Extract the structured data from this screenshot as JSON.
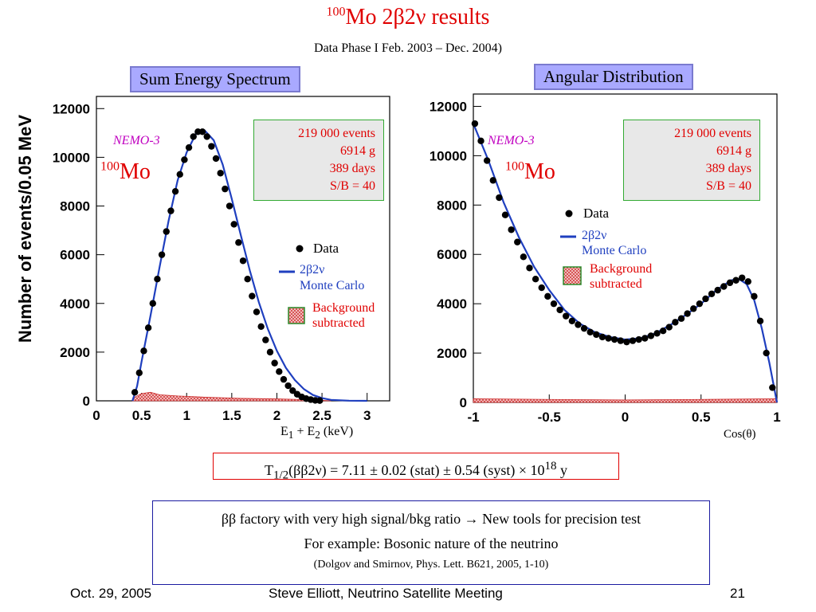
{
  "slide": {
    "title_mass": "100",
    "title_main": "Mo 2β2ν results",
    "subtitle": "Data Phase I  Feb. 2003 –  Dec. 2004)",
    "left_panel_title": "Sum Energy Spectrum",
    "right_panel_title": "Angular Distribution",
    "result_formula": "T1/2(ββ2ν) = 7.11 ± 0.02 (stat) ± 0.54 (syst) × 10^18 y",
    "note_line1": "ββ factory with very high signal/bkg ratio  →  New tools for precision test",
    "note_line2": "For example: Bosonic nature of the neutrino",
    "note_line3": "(Dolgov and Smirnov, Phys. Lett. B621, 2005, 1-10)",
    "footer_date": "Oct. 29, 2005",
    "footer_center": "Steve Elliott, Neutrino Satellite Meeting",
    "footer_page": "21"
  },
  "colors": {
    "title_red": "#e00000",
    "label_blue": "#a9a9ff",
    "mc_line": "#1f3fbf",
    "info_box_bg": "#e8e8e8",
    "info_box_border": "#33aa33",
    "nemo_text": "#c000c0",
    "bg_hatch": "#cc2a2a"
  },
  "chart_data": [
    {
      "type": "scatter",
      "title": "Sum Energy Spectrum",
      "xlabel": "E1 + E2  (keV)",
      "ylabel": "Number of events/0.05 MeV",
      "xlim": [
        0,
        3.25
      ],
      "ylim": [
        0,
        12500
      ],
      "x_ticks": [
        "0",
        "0.5",
        "1",
        "1.5",
        "2",
        "2.5",
        "3"
      ],
      "y_ticks": [
        "0",
        "2000",
        "4000",
        "6000",
        "8000",
        "10000",
        "12000"
      ],
      "experiment_label": "NEMO-3",
      "isotope_mass": "100",
      "isotope": "Mo",
      "info_box": [
        "219 000  events",
        "6914 g",
        "389 days",
        "S/B = 40"
      ],
      "legend": {
        "data": "Data",
        "mc_line1": "2β2ν",
        "mc_line2": "Monte Carlo",
        "bg_line1": "Background",
        "bg_line2": "subtracted"
      },
      "series": [
        {
          "name": "Data",
          "x": [
            0.425,
            0.475,
            0.525,
            0.575,
            0.625,
            0.675,
            0.725,
            0.775,
            0.825,
            0.875,
            0.925,
            0.975,
            1.025,
            1.075,
            1.125,
            1.175,
            1.225,
            1.275,
            1.325,
            1.375,
            1.425,
            1.475,
            1.525,
            1.575,
            1.625,
            1.675,
            1.725,
            1.775,
            1.825,
            1.875,
            1.925,
            1.975,
            2.025,
            2.075,
            2.125,
            2.175,
            2.225,
            2.275,
            2.325,
            2.375,
            2.425,
            2.475
          ],
          "y": [
            350,
            1150,
            2050,
            3000,
            4000,
            5000,
            6000,
            6950,
            7800,
            8600,
            9300,
            9900,
            10400,
            10850,
            11050,
            11050,
            10850,
            10450,
            9950,
            9350,
            8700,
            8000,
            7250,
            6500,
            5750,
            5000,
            4300,
            3650,
            3050,
            2500,
            2000,
            1550,
            1200,
            880,
            620,
            420,
            270,
            160,
            90,
            50,
            20,
            10
          ]
        },
        {
          "name": "2β2ν Monte Carlo",
          "x": [
            0.4,
            0.45,
            0.5,
            0.6,
            0.7,
            0.8,
            0.9,
            1.0,
            1.1,
            1.2,
            1.3,
            1.4,
            1.5,
            1.6,
            1.7,
            1.8,
            1.9,
            2.0,
            2.1,
            2.2,
            2.3,
            2.4,
            2.5,
            2.6,
            2.8,
            3.0
          ],
          "y": [
            0,
            600,
            1600,
            3500,
            5500,
            7400,
            9050,
            10200,
            10950,
            11100,
            10700,
            9700,
            8300,
            6800,
            5350,
            4050,
            2950,
            2050,
            1350,
            850,
            480,
            240,
            110,
            40,
            5,
            0
          ]
        },
        {
          "name": "Background subtracted",
          "x": [
            0.4,
            0.5,
            0.6,
            0.7,
            0.9,
            1.2,
            1.6,
            2.0,
            2.4,
            2.6
          ],
          "y": [
            100,
            300,
            350,
            250,
            200,
            150,
            100,
            80,
            40,
            0
          ]
        }
      ]
    },
    {
      "type": "scatter",
      "title": "Angular Distribution",
      "xlabel": "Cos(θ)",
      "ylabel": "",
      "xlim": [
        -1,
        1
      ],
      "ylim": [
        0,
        12500
      ],
      "x_ticks": [
        "-1",
        "-0.5",
        "0",
        "0.5",
        "1"
      ],
      "y_ticks": [
        "0",
        "2000",
        "4000",
        "6000",
        "8000",
        "10000",
        "12000"
      ],
      "experiment_label": "NEMO-3",
      "isotope_mass": "100",
      "isotope": "Mo",
      "info_box": [
        "219 000  events",
        "6914 g",
        "389 days",
        "S/B = 40"
      ],
      "legend": {
        "data": "Data",
        "mc_line1": "2β2ν",
        "mc_line2": "Monte Carlo",
        "bg_line1": "Background",
        "bg_line2": "subtracted"
      },
      "series": [
        {
          "name": "Data",
          "x": [
            -0.99,
            -0.95,
            -0.91,
            -0.87,
            -0.83,
            -0.79,
            -0.75,
            -0.71,
            -0.67,
            -0.63,
            -0.59,
            -0.55,
            -0.51,
            -0.47,
            -0.43,
            -0.39,
            -0.35,
            -0.31,
            -0.27,
            -0.23,
            -0.19,
            -0.15,
            -0.11,
            -0.07,
            -0.03,
            0.01,
            0.05,
            0.09,
            0.13,
            0.17,
            0.21,
            0.25,
            0.29,
            0.33,
            0.37,
            0.41,
            0.45,
            0.49,
            0.53,
            0.57,
            0.61,
            0.65,
            0.69,
            0.73,
            0.77,
            0.81,
            0.85,
            0.89,
            0.93,
            0.97
          ],
          "y": [
            11300,
            10600,
            9800,
            9000,
            8300,
            7600,
            7000,
            6500,
            5900,
            5450,
            5000,
            4650,
            4300,
            4000,
            3750,
            3500,
            3300,
            3150,
            3000,
            2850,
            2750,
            2650,
            2600,
            2550,
            2500,
            2450,
            2500,
            2550,
            2600,
            2700,
            2800,
            2900,
            3050,
            3250,
            3400,
            3600,
            3800,
            4000,
            4200,
            4400,
            4550,
            4700,
            4850,
            4950,
            5050,
            4900,
            4300,
            3300,
            2000,
            600
          ]
        },
        {
          "name": "2β2ν Monte Carlo",
          "x": [
            -1,
            -0.9,
            -0.8,
            -0.7,
            -0.6,
            -0.5,
            -0.4,
            -0.3,
            -0.2,
            -0.1,
            0,
            0.1,
            0.2,
            0.3,
            0.4,
            0.5,
            0.6,
            0.7,
            0.75,
            0.8,
            0.85,
            0.9,
            0.95,
            1.0
          ],
          "y": [
            11300,
            9800,
            8100,
            6700,
            5500,
            4550,
            3750,
            3200,
            2850,
            2650,
            2550,
            2600,
            2800,
            3150,
            3550,
            4000,
            4550,
            4950,
            5000,
            4800,
            4150,
            3000,
            1600,
            0
          ]
        },
        {
          "name": "Background subtracted",
          "x": [
            -1,
            -0.5,
            0,
            0.5,
            1
          ],
          "y": [
            150,
            120,
            100,
            120,
            150
          ]
        }
      ]
    }
  ]
}
